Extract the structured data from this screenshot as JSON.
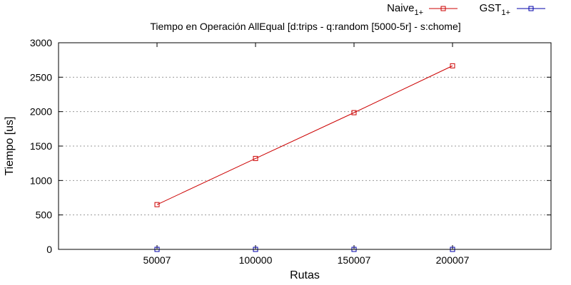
{
  "chart_data": {
    "type": "line",
    "title": "Tiempo en Operación AllEqual [d:trips - q:random [5000-5r] - s:chome]",
    "xlabel": "Rutas",
    "ylabel": "Tiempo [us]",
    "categories": [
      "50007",
      "100000",
      "150007",
      "200007"
    ],
    "ylim": [
      0,
      3000
    ],
    "yticks": [
      0,
      500,
      1000,
      1500,
      2000,
      2500,
      3000
    ],
    "grid": "horizontal",
    "legend_position": "top-right",
    "series": [
      {
        "name": "Naive",
        "name_sub": "1+",
        "color": "#cc0000",
        "marker": "square",
        "values": [
          650,
          1320,
          1985,
          2665
        ]
      },
      {
        "name": "GST",
        "name_sub": "1+",
        "color": "#0000aa",
        "marker": "square",
        "values": [
          0,
          0,
          0,
          0
        ]
      }
    ]
  }
}
